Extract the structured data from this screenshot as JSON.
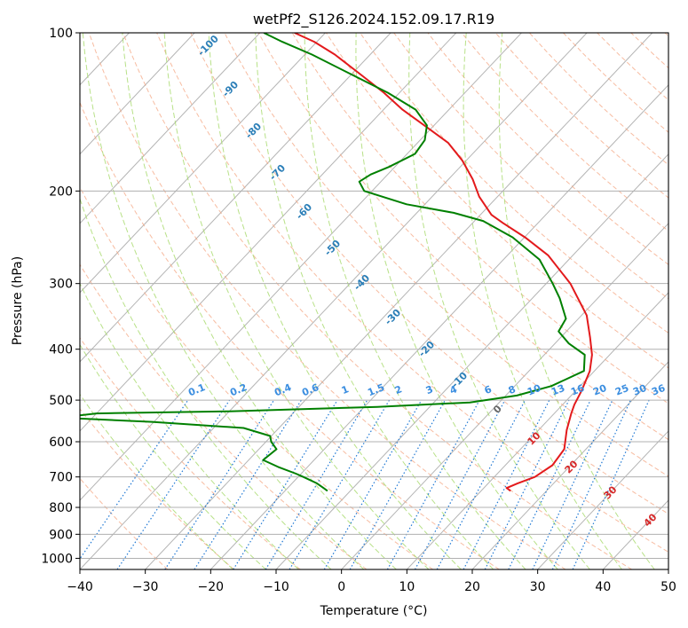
{
  "chart_data": {
    "type": "line",
    "title": "wetPf2_S126.2024.152.09.17.R19",
    "xlabel": "Temperature (°C)",
    "ylabel": "Pressure (hPa)",
    "xlim": [
      -40,
      50
    ],
    "ylim": [
      1050,
      100
    ],
    "y_scale": "log",
    "x_ticks": [
      "−40",
      "−30",
      "−20",
      "−10",
      "0",
      "10",
      "20",
      "30",
      "40",
      "50"
    ],
    "x_tick_values": [
      -40,
      -30,
      -20,
      -10,
      0,
      10,
      20,
      30,
      40,
      50
    ],
    "y_ticks": [
      "100",
      "200",
      "300",
      "400",
      "500",
      "600",
      "700",
      "800",
      "900",
      "1000"
    ],
    "y_tick_values": [
      100,
      200,
      300,
      400,
      500,
      600,
      700,
      800,
      900,
      1000
    ],
    "grid": true,
    "skew_note": "Skew-T diagram: isotherms slanted; dashed dry adiabats, moist adiabats, dotted mixing-ratio lines",
    "isotherm_labels": [
      "-100",
      "-90",
      "-80",
      "-70",
      "-60",
      "-50",
      "-40",
      "-30",
      "-20",
      "-10"
    ],
    "mixing_ratio_labels": [
      "0.1",
      "0.2",
      "0.4",
      "0.6",
      "1",
      "1.5",
      "2",
      "3",
      "4",
      "6",
      "8",
      "10",
      "13",
      "16",
      "20",
      "25",
      "30",
      "36"
    ],
    "moist_adiabat_labels": [
      "0",
      "10",
      "20",
      "30",
      "40"
    ],
    "series": [
      {
        "name": "",
        "color": "#e31a1c",
        "points": [
          [
            744,
            14.5
          ],
          [
            735,
            13.5
          ],
          [
            720,
            14.5
          ],
          [
            700,
            16.2
          ],
          [
            665,
            17.2
          ],
          [
            620,
            16.7
          ],
          [
            570,
            14.3
          ],
          [
            530,
            12.6
          ],
          [
            510,
            11.8
          ],
          [
            480,
            10.9
          ],
          [
            440,
            9.3
          ],
          [
            410,
            7.3
          ],
          [
            380,
            4.5
          ],
          [
            345,
            0.8
          ],
          [
            300,
            -6.3
          ],
          [
            265,
            -13.8
          ],
          [
            245,
            -19.9
          ],
          [
            230,
            -25.4
          ],
          [
            222,
            -28.3
          ],
          [
            205,
            -32.8
          ],
          [
            190,
            -36.3
          ],
          [
            175,
            -40.6
          ],
          [
            162,
            -45.3
          ],
          [
            150,
            -51.5
          ],
          [
            140,
            -57.1
          ],
          [
            130,
            -62.4
          ],
          [
            120,
            -68.6
          ],
          [
            110,
            -75.4
          ],
          [
            104,
            -80.4
          ],
          [
            100,
            -84.7
          ]
        ]
      },
      {
        "name": "",
        "color": "#008000",
        "points": [
          [
            744,
            -13.5
          ],
          [
            735,
            -14.5
          ],
          [
            720,
            -16.2
          ],
          [
            700,
            -19.2
          ],
          [
            690,
            -20.8
          ],
          [
            670,
            -24.5
          ],
          [
            650,
            -27.8
          ],
          [
            620,
            -27.3
          ],
          [
            600,
            -29.2
          ],
          [
            585,
            -30.2
          ],
          [
            565,
            -35.4
          ],
          [
            550,
            -50.3
          ],
          [
            540,
            -65.0
          ],
          [
            530,
            -60.0
          ],
          [
            525,
            -40.0
          ],
          [
            515,
            -18.0
          ],
          [
            505,
            -4.5
          ],
          [
            490,
            1.7
          ],
          [
            470,
            5.6
          ],
          [
            440,
            8.4
          ],
          [
            410,
            6.2
          ],
          [
            390,
            2.1
          ],
          [
            370,
            -1.2
          ],
          [
            350,
            -1.9
          ],
          [
            320,
            -5.8
          ],
          [
            300,
            -9.0
          ],
          [
            270,
            -14.5
          ],
          [
            245,
            -21.8
          ],
          [
            228,
            -28.7
          ],
          [
            220,
            -34.4
          ],
          [
            212,
            -42.8
          ],
          [
            200,
            -51.2
          ],
          [
            192,
            -53.3
          ],
          [
            186,
            -52.6
          ],
          [
            180,
            -50.9
          ],
          [
            170,
            -48.8
          ],
          [
            160,
            -49.3
          ],
          [
            150,
            -51.1
          ],
          [
            140,
            -55.1
          ],
          [
            130,
            -61.8
          ],
          [
            120,
            -70.0
          ],
          [
            110,
            -78.9
          ],
          [
            104,
            -85.3
          ],
          [
            100,
            -89.4
          ]
        ]
      }
    ]
  }
}
